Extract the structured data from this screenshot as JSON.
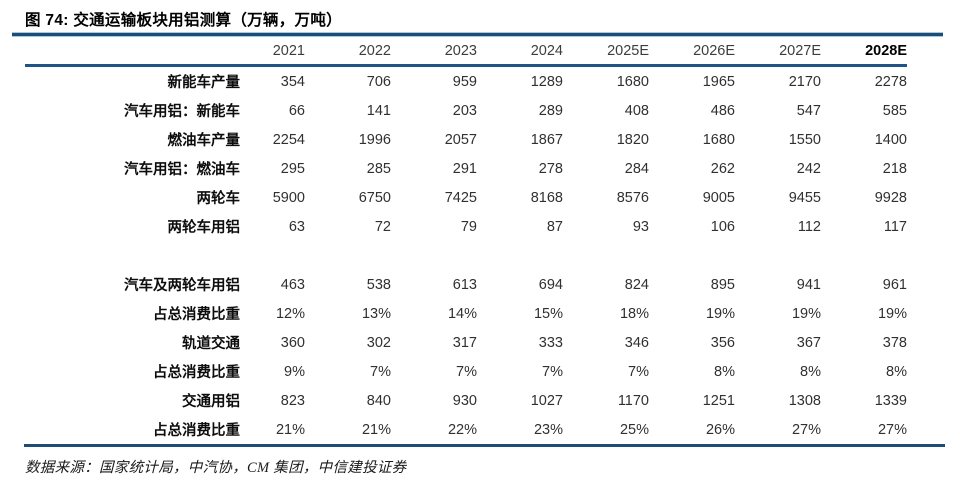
{
  "title": "图 74: 交通运输板块用铝测算（万辆，万吨）",
  "footer": "数据来源：国家统计局，中汽协，CM 集团，中信建投证券",
  "colors": {
    "rule_blue": "#1B4D76",
    "header_rule_blue": "#1E5586",
    "title_text": "#000000",
    "number_text": "#303030",
    "label_text": "#0D0D0D"
  },
  "chart_data": {
    "type": "table",
    "title": "交通运输板块用铝测算（万辆，万吨）",
    "columns": [
      "2021",
      "2022",
      "2023",
      "2024",
      "2025E",
      "2026E",
      "2027E",
      "2028E"
    ],
    "emphasized_column": "2028E",
    "rows": [
      {
        "label": "新能车产量",
        "values": [
          "354",
          "706",
          "959",
          "1289",
          "1680",
          "1965",
          "2170",
          "2278"
        ]
      },
      {
        "label": "汽车用铝：新能车",
        "values": [
          "66",
          "141",
          "203",
          "289",
          "408",
          "486",
          "547",
          "585"
        ]
      },
      {
        "label": "燃油车产量",
        "values": [
          "2254",
          "1996",
          "2057",
          "1867",
          "1820",
          "1680",
          "1550",
          "1400"
        ]
      },
      {
        "label": "汽车用铝：燃油车",
        "values": [
          "295",
          "285",
          "291",
          "278",
          "284",
          "262",
          "242",
          "218"
        ]
      },
      {
        "label": "两轮车",
        "values": [
          "5900",
          "6750",
          "7425",
          "8168",
          "8576",
          "9005",
          "9455",
          "9928"
        ]
      },
      {
        "label": "两轮车用铝",
        "values": [
          "63",
          "72",
          "79",
          "87",
          "93",
          "106",
          "112",
          "117"
        ]
      },
      {
        "label": "",
        "values": []
      },
      {
        "label": "汽车及两轮车用铝",
        "values": [
          "463",
          "538",
          "613",
          "694",
          "824",
          "895",
          "941",
          "961"
        ]
      },
      {
        "label": "占总消费比重",
        "values": [
          "12%",
          "13%",
          "14%",
          "15%",
          "18%",
          "19%",
          "19%",
          "19%"
        ]
      },
      {
        "label": "轨道交通",
        "values": [
          "360",
          "302",
          "317",
          "333",
          "346",
          "356",
          "367",
          "378"
        ]
      },
      {
        "label": "占总消费比重",
        "values": [
          "9%",
          "7%",
          "7%",
          "7%",
          "7%",
          "8%",
          "8%",
          "8%"
        ]
      },
      {
        "label": "交通用铝",
        "values": [
          "823",
          "840",
          "930",
          "1027",
          "1170",
          "1251",
          "1308",
          "1339"
        ]
      },
      {
        "label": "占总消费比重",
        "values": [
          "21%",
          "21%",
          "22%",
          "23%",
          "25%",
          "26%",
          "27%",
          "27%"
        ]
      }
    ]
  }
}
